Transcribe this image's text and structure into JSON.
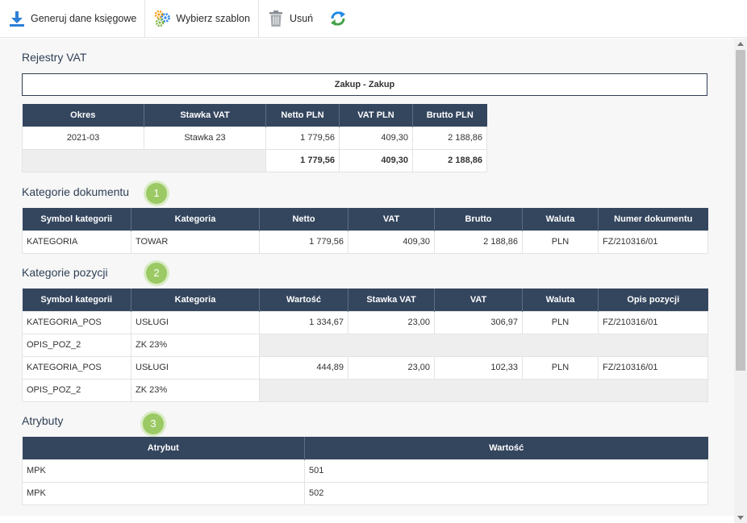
{
  "toolbar": {
    "generate_label": "Generuj dane księgowe",
    "template_label": "Wybierz szablon",
    "delete_label": "Usuń",
    "colors": {
      "download": "#2c7fd6",
      "gear_blue": "#3a8ee6",
      "gear_green": "#7cb342",
      "gear_orange": "#f39c12",
      "refresh_blue": "#1e88e5",
      "refresh_green": "#43a047"
    }
  },
  "vat_registers": {
    "title": "Rejestry VAT",
    "register_name": "Zakup - Zakup",
    "headers": [
      "Okres",
      "Stawka VAT",
      "Netto PLN",
      "VAT PLN",
      "Brutto PLN"
    ],
    "rows": [
      [
        "2021-03",
        "Stawka 23",
        "1 779,56",
        "409,30",
        "2 188,86"
      ]
    ],
    "totals": [
      "1 779,56",
      "409,30",
      "2 188,86"
    ]
  },
  "doc_categories": {
    "title": "Kategorie dokumentu",
    "badge": "1",
    "headers": [
      "Symbol kategorii",
      "Kategoria",
      "Netto",
      "VAT",
      "Brutto",
      "Waluta",
      "Numer dokumentu"
    ],
    "rows": [
      [
        "KATEGORIA",
        "TOWAR",
        "1 779,56",
        "409,30",
        "2 188,86",
        "PLN",
        "FZ/210316/01"
      ]
    ]
  },
  "pos_categories": {
    "title": "Kategorie pozycji",
    "badge": "2",
    "headers": [
      "Symbol kategorii",
      "Kategoria",
      "Wartość",
      "Stawka VAT",
      "VAT",
      "Waluta",
      "Opis pozycji"
    ],
    "rows": [
      [
        "KATEGORIA_POS",
        "USŁUGI",
        "1 334,67",
        "23,00",
        "306,97",
        "PLN",
        "FZ/210316/01"
      ],
      [
        "OPIS_POZ_2",
        "ZK 23%"
      ],
      [
        "KATEGORIA_POS",
        "USŁUGI",
        "444,89",
        "23,00",
        "102,33",
        "PLN",
        "FZ/210316/01"
      ],
      [
        "OPIS_POZ_2",
        "ZK 23%"
      ]
    ]
  },
  "attributes": {
    "title": "Atrybuty",
    "badge": "3",
    "headers": [
      "Atrybut",
      "Wartość"
    ],
    "rows": [
      [
        "MPK",
        "501"
      ],
      [
        "MPK",
        "502"
      ]
    ]
  },
  "colors": {
    "header_bg": "#34465e",
    "badge": "#9bc964",
    "title_text": "#2e3f55"
  }
}
